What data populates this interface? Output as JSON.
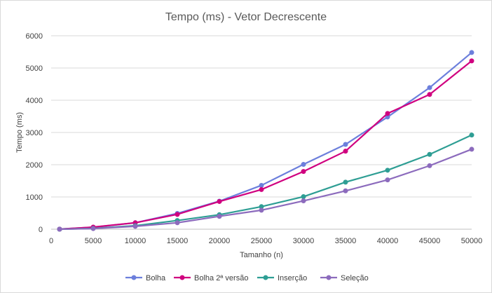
{
  "chart_data": {
    "type": "line",
    "title": "Tempo (ms) - Vetor Decrescente",
    "xlabel": "Tamanho (n)",
    "ylabel": "Tempo (ms)",
    "xlim": [
      0,
      50000
    ],
    "ylim": [
      0,
      6000
    ],
    "xticks": [
      0,
      5000,
      10000,
      15000,
      20000,
      25000,
      30000,
      35000,
      40000,
      45000,
      50000
    ],
    "yticks": [
      0,
      1000,
      2000,
      3000,
      4000,
      5000,
      6000
    ],
    "grid": true,
    "legend_position": "bottom",
    "x": [
      1000,
      5000,
      10000,
      15000,
      20000,
      25000,
      30000,
      35000,
      40000,
      45000,
      50000
    ],
    "series": [
      {
        "name": "Bolha",
        "color": "#6c7fdc",
        "values": [
          2,
          60,
          200,
          490,
          870,
          1360,
          2010,
          2630,
          3480,
          4390,
          5480
        ]
      },
      {
        "name": "Bolha 2ª versão",
        "color": "#d0007f",
        "values": [
          2,
          65,
          200,
          460,
          860,
          1230,
          1790,
          2420,
          3590,
          4180,
          5220
        ]
      },
      {
        "name": "Inserção",
        "color": "#2e9e94",
        "values": [
          0,
          25,
          110,
          270,
          450,
          700,
          1010,
          1460,
          1830,
          2320,
          2920
        ]
      },
      {
        "name": "Seleção",
        "color": "#8c6bbd",
        "values": [
          0,
          20,
          90,
          200,
          400,
          590,
          880,
          1190,
          1530,
          1970,
          2480
        ]
      }
    ]
  }
}
